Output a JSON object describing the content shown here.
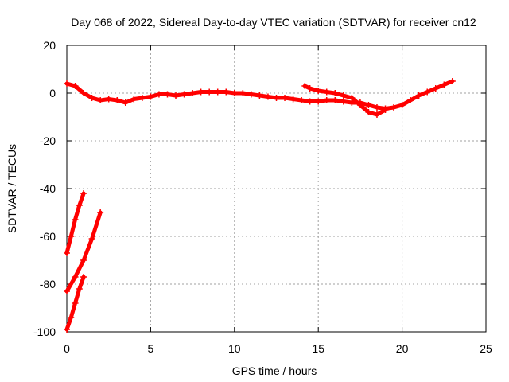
{
  "chart_data": {
    "type": "scatter",
    "title": "Day 068 of 2022, Sidereal Day-to-day VTEC variation (SDTVAR) for receiver cn12",
    "xlabel": "GPS time / hours",
    "ylabel": "SDTVAR / TECUs",
    "xlim": [
      0,
      25
    ],
    "ylim": [
      -100,
      20
    ],
    "xticks": [
      0,
      5,
      10,
      15,
      20,
      25
    ],
    "yticks": [
      -100,
      -80,
      -60,
      -40,
      -20,
      0,
      20
    ],
    "xtick_labels": [
      "0",
      "5",
      "10",
      "15",
      "20",
      "25"
    ],
    "ytick_labels": [
      "-100",
      "-80",
      "-60",
      "-40",
      "-20",
      "0",
      "20"
    ],
    "grid": true,
    "series_color": "#ff0000",
    "series": [
      {
        "name": "main",
        "x": [
          0,
          0.5,
          1,
          1.5,
          2,
          2.5,
          3,
          3.5,
          4,
          4.5,
          5,
          5.5,
          6,
          6.5,
          7,
          7.5,
          8,
          8.5,
          9,
          9.5,
          10,
          10.5,
          11,
          11.5,
          12,
          12.5,
          13,
          13.5,
          14,
          14.5,
          15,
          15.5,
          16,
          16.5,
          17,
          17.5,
          18,
          18.5,
          19,
          19.5,
          20,
          20.5,
          21,
          21.5,
          22,
          22.5,
          23
        ],
        "y": [
          4,
          3,
          0,
          -2,
          -3,
          -2.5,
          -3,
          -4,
          -2.5,
          -2,
          -1.5,
          -0.5,
          -0.5,
          -1,
          -0.5,
          0,
          0.5,
          0.5,
          0.5,
          0.5,
          0,
          0,
          -0.5,
          -1,
          -1.5,
          -2,
          -2,
          -2.5,
          -3,
          -3.5,
          -3.5,
          -3,
          -3,
          -3.5,
          -4,
          -4,
          -5,
          -6,
          -6.5,
          -6,
          -5,
          -3,
          -1,
          0.5,
          2,
          3.5,
          5
        ]
      },
      {
        "name": "arc-dip",
        "x": [
          14.2,
          14.5,
          15,
          15.5,
          16,
          16.5,
          17,
          17.5,
          18,
          18.5,
          19
        ],
        "y": [
          3,
          2,
          1,
          0.5,
          0,
          -1,
          -2,
          -5,
          -8,
          -9,
          -7
        ]
      },
      {
        "name": "arc-1",
        "x": [
          0,
          0.25,
          0.5,
          0.75,
          1.0
        ],
        "y": [
          -67,
          -60,
          -53,
          -47,
          -42
        ]
      },
      {
        "name": "arc-2",
        "x": [
          0,
          0.5,
          1.0,
          1.5,
          2.0
        ],
        "y": [
          -83,
          -77,
          -70,
          -61,
          -50
        ]
      },
      {
        "name": "arc-3",
        "x": [
          0,
          0.25,
          0.5,
          0.75,
          1.0
        ],
        "y": [
          -99,
          -94,
          -88,
          -82,
          -77
        ]
      }
    ]
  }
}
